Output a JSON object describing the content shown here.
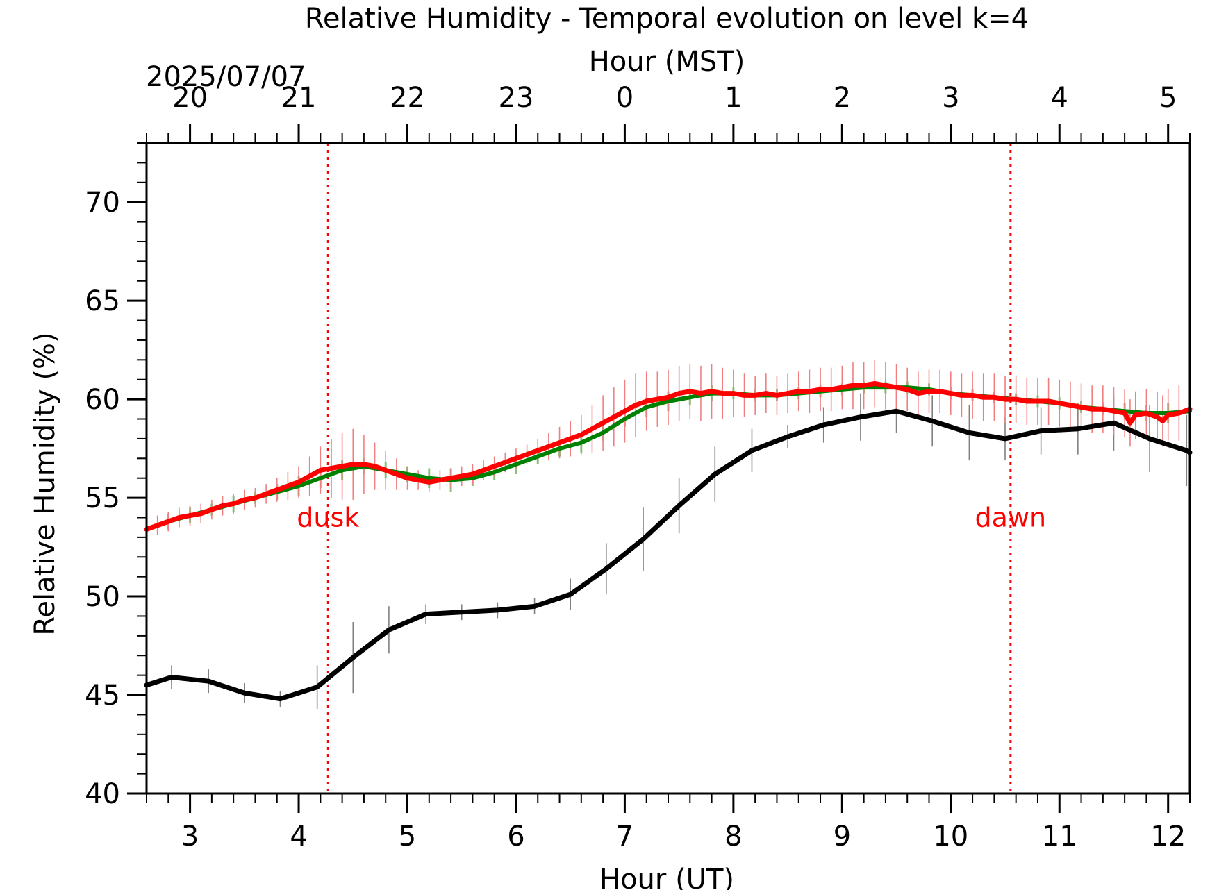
{
  "chart_data": {
    "type": "line",
    "title": "Relative Humidity - Temporal evolution on level k=4",
    "xlabel": "Hour (UT)",
    "ylabel": "Relative Humidity (%)",
    "top_xlabel": "Hour (MST)",
    "date_label": "2025/07/07",
    "xlim": [
      2.6,
      12.2
    ],
    "ylim": [
      40,
      73
    ],
    "x_ticks": [
      3,
      4,
      5,
      6,
      7,
      8,
      9,
      10,
      11,
      12
    ],
    "x_tick_labels": [
      "3",
      "4",
      "5",
      "6",
      "7",
      "8",
      "9",
      "10",
      "11",
      "12"
    ],
    "y_ticks": [
      40,
      45,
      50,
      55,
      60,
      65,
      70
    ],
    "y_tick_labels": [
      "40",
      "45",
      "50",
      "55",
      "60",
      "65",
      "70"
    ],
    "top_x_ticks": [
      3,
      4,
      5,
      6,
      7,
      8,
      9,
      10,
      11,
      12
    ],
    "top_x_tick_labels": [
      "20",
      "21",
      "22",
      "23",
      "0",
      "1",
      "2",
      "3",
      "4",
      "5"
    ],
    "annotations": [
      {
        "text": "dusk",
        "x": 4.27,
        "y": 54.0
      },
      {
        "text": "dawn",
        "x": 10.55,
        "y": 54.0
      }
    ],
    "vlines": [
      4.27,
      10.55
    ],
    "grid": false,
    "colors": {
      "black_series": "#000000",
      "green_series": "#008000",
      "red_series": "#ff0000",
      "black_errorbar": "#808080",
      "green_errorbar": "#90c080",
      "red_errorbar": "#f08080",
      "vline": "#ff0000"
    },
    "series": [
      {
        "color": "#000000",
        "x": [
          2.6,
          2.83,
          3.17,
          3.5,
          3.83,
          4.17,
          4.5,
          4.83,
          5.17,
          5.5,
          5.83,
          6.17,
          6.5,
          6.83,
          7.17,
          7.5,
          7.83,
          8.17,
          8.5,
          8.83,
          9.17,
          9.5,
          9.83,
          10.17,
          10.5,
          10.83,
          11.17,
          11.5,
          11.83,
          12.17,
          12.2
        ],
        "values": [
          45.5,
          45.9,
          45.7,
          45.1,
          44.8,
          45.4,
          46.9,
          48.3,
          49.1,
          49.2,
          49.3,
          49.5,
          50.1,
          51.4,
          52.9,
          54.6,
          56.2,
          57.4,
          58.1,
          58.7,
          59.1,
          59.4,
          58.9,
          58.3,
          58.0,
          58.4,
          58.5,
          58.8,
          58.0,
          57.4,
          57.3
        ],
        "error": [
          0.8,
          0.6,
          0.6,
          0.5,
          0.4,
          1.1,
          1.8,
          1.2,
          0.5,
          0.4,
          0.4,
          0.4,
          0.8,
          1.3,
          1.6,
          1.4,
          1.4,
          1.1,
          0.6,
          0.9,
          1.2,
          1.1,
          1.3,
          1.4,
          1.1,
          1.2,
          1.3,
          1.4,
          1.7,
          1.8,
          1.8
        ]
      },
      {
        "color": "#008000",
        "x": [
          2.6,
          2.8,
          3.0,
          3.2,
          3.4,
          3.6,
          3.8,
          4.0,
          4.2,
          4.4,
          4.6,
          4.8,
          5.0,
          5.2,
          5.4,
          5.6,
          5.8,
          6.0,
          6.2,
          6.4,
          6.6,
          6.8,
          7.0,
          7.2,
          7.4,
          7.6,
          7.8,
          8.0,
          8.2,
          8.4,
          8.6,
          8.8,
          9.0,
          9.2,
          9.4,
          9.6,
          9.8,
          10.0,
          10.2,
          10.4,
          10.6,
          10.8,
          11.0,
          11.2,
          11.4,
          11.6,
          11.8,
          12.0,
          12.2
        ],
        "values": [
          53.4,
          53.8,
          54.1,
          54.4,
          54.7,
          55.0,
          55.3,
          55.6,
          56.0,
          56.4,
          56.6,
          56.4,
          56.2,
          56.0,
          55.9,
          56.0,
          56.3,
          56.7,
          57.1,
          57.5,
          57.8,
          58.3,
          59.0,
          59.6,
          59.9,
          60.1,
          60.3,
          60.3,
          60.2,
          60.2,
          60.3,
          60.4,
          60.5,
          60.6,
          60.6,
          60.6,
          60.5,
          60.3,
          60.2,
          60.1,
          60.0,
          59.9,
          59.8,
          59.6,
          59.5,
          59.4,
          59.3,
          59.3,
          59.4
        ],
        "error": [
          0.5,
          0.4,
          0.4,
          0.3,
          0.4,
          0.3,
          0.4,
          0.5,
          0.5,
          0.5,
          0.4,
          0.4,
          0.4,
          0.5,
          0.6,
          0.4,
          0.4,
          0.5,
          0.4,
          0.4,
          0.5,
          0.4,
          0.4,
          0.5,
          0.5,
          0.4,
          0.4,
          0.3,
          0.3,
          0.3,
          0.3,
          0.3,
          0.3,
          0.3,
          0.3,
          0.3,
          0.3,
          0.3,
          0.3,
          0.3,
          0.3,
          0.3,
          0.3,
          0.3,
          0.3,
          0.4,
          0.4,
          0.5,
          0.5
        ]
      },
      {
        "color": "#ff0000",
        "x": [
          2.6,
          2.7,
          2.8,
          2.9,
          3.0,
          3.1,
          3.2,
          3.3,
          3.4,
          3.5,
          3.6,
          3.7,
          3.8,
          3.9,
          4.0,
          4.1,
          4.2,
          4.3,
          4.4,
          4.5,
          4.6,
          4.7,
          4.8,
          4.9,
          5.0,
          5.1,
          5.2,
          5.3,
          5.4,
          5.5,
          5.6,
          5.7,
          5.8,
          5.9,
          6.0,
          6.1,
          6.2,
          6.3,
          6.4,
          6.5,
          6.6,
          6.7,
          6.8,
          6.9,
          7.0,
          7.1,
          7.2,
          7.3,
          7.4,
          7.5,
          7.6,
          7.7,
          7.8,
          7.9,
          8.0,
          8.1,
          8.2,
          8.3,
          8.4,
          8.5,
          8.6,
          8.7,
          8.8,
          8.9,
          9.0,
          9.1,
          9.2,
          9.3,
          9.4,
          9.5,
          9.6,
          9.7,
          9.8,
          9.9,
          10.0,
          10.1,
          10.2,
          10.3,
          10.4,
          10.5,
          10.6,
          10.7,
          10.8,
          10.9,
          11.0,
          11.1,
          11.2,
          11.3,
          11.4,
          11.5,
          11.6,
          11.65,
          11.7,
          11.8,
          11.9,
          11.95,
          12.0,
          12.1,
          12.2
        ],
        "values": [
          53.4,
          53.6,
          53.8,
          54.0,
          54.1,
          54.2,
          54.4,
          54.6,
          54.7,
          54.9,
          55.0,
          55.2,
          55.4,
          55.6,
          55.8,
          56.1,
          56.4,
          56.5,
          56.6,
          56.7,
          56.7,
          56.6,
          56.4,
          56.2,
          56.0,
          55.9,
          55.8,
          55.9,
          56.0,
          56.1,
          56.2,
          56.4,
          56.6,
          56.8,
          57.0,
          57.2,
          57.4,
          57.6,
          57.8,
          58.0,
          58.2,
          58.5,
          58.8,
          59.1,
          59.4,
          59.7,
          59.9,
          60.0,
          60.1,
          60.3,
          60.4,
          60.3,
          60.4,
          60.3,
          60.3,
          60.2,
          60.2,
          60.3,
          60.2,
          60.3,
          60.4,
          60.4,
          60.5,
          60.5,
          60.6,
          60.7,
          60.7,
          60.8,
          60.7,
          60.6,
          60.5,
          60.3,
          60.4,
          60.4,
          60.3,
          60.2,
          60.2,
          60.1,
          60.1,
          60.0,
          60.0,
          59.9,
          59.9,
          59.9,
          59.8,
          59.7,
          59.6,
          59.5,
          59.5,
          59.4,
          59.3,
          58.8,
          59.2,
          59.3,
          59.1,
          58.9,
          59.2,
          59.3,
          59.5
        ],
        "error": [
          0.6,
          0.5,
          0.5,
          0.5,
          0.5,
          0.5,
          0.5,
          0.5,
          0.5,
          0.5,
          0.5,
          0.5,
          0.6,
          0.7,
          0.8,
          1.0,
          1.2,
          1.5,
          1.7,
          1.8,
          1.5,
          1.2,
          1.0,
          0.8,
          0.6,
          0.5,
          0.5,
          0.5,
          0.5,
          0.5,
          0.5,
          0.5,
          0.5,
          0.5,
          0.5,
          0.5,
          0.6,
          0.7,
          0.8,
          0.9,
          1.0,
          1.2,
          1.4,
          1.5,
          1.6,
          1.6,
          1.5,
          1.4,
          1.4,
          1.4,
          1.4,
          1.4,
          1.4,
          1.3,
          1.2,
          1.1,
          1.0,
          1.0,
          1.0,
          1.0,
          1.0,
          1.1,
          1.1,
          1.1,
          1.1,
          1.2,
          1.2,
          1.2,
          1.2,
          1.2,
          1.1,
          1.1,
          1.1,
          1.1,
          1.1,
          1.1,
          1.2,
          1.2,
          1.2,
          1.2,
          1.2,
          1.2,
          1.2,
          1.2,
          1.2,
          1.2,
          1.2,
          1.2,
          1.2,
          1.2,
          1.2,
          1.2,
          1.2,
          1.2,
          1.3,
          1.3,
          1.3,
          1.4,
          1.5
        ]
      }
    ]
  }
}
